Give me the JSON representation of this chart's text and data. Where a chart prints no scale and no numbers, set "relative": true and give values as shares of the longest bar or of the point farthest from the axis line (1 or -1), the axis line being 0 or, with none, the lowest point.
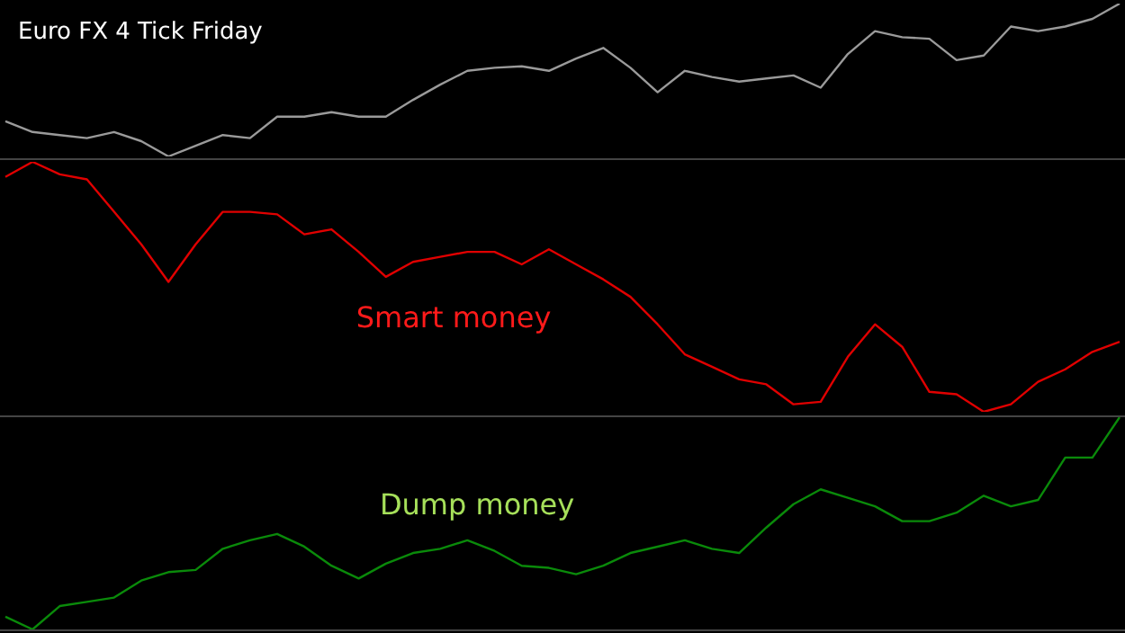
{
  "chart_data": [
    {
      "type": "line",
      "title": "Euro FX 4 Tick Friday",
      "relative": true,
      "categories": [
        null,
        null,
        null,
        null,
        null,
        null,
        null,
        null,
        null,
        null,
        null,
        null,
        null,
        null,
        null,
        null,
        null,
        null,
        null,
        null,
        null,
        null,
        null,
        null,
        null,
        null,
        null,
        null,
        null,
        null,
        null,
        null,
        null,
        null,
        null,
        null,
        null,
        null,
        null,
        null,
        null,
        null
      ],
      "series": [
        {
          "color": "#9a9a9a",
          "values": [
            0.23,
            0.16,
            0.14,
            0.12,
            0.16,
            0.1,
            0,
            0.07,
            0.14,
            0.12,
            0.26,
            0.26,
            0.29,
            0.26,
            0.26,
            0.37,
            0.47,
            0.56,
            0.58,
            0.59,
            0.56,
            0.64,
            0.71,
            0.58,
            0.42,
            0.56,
            0.52,
            0.49,
            0.51,
            0.53,
            0.45,
            0.67,
            0.82,
            0.78,
            0.77,
            0.63,
            0.66,
            0.85,
            0.82,
            0.85,
            0.9,
            1
          ]
        }
      ]
    },
    {
      "type": "line",
      "relative": true,
      "annotations": [
        "Smart money"
      ],
      "categories": [
        null,
        null,
        null,
        null,
        null,
        null,
        null,
        null,
        null,
        null,
        null,
        null,
        null,
        null,
        null,
        null,
        null,
        null,
        null,
        null,
        null,
        null,
        null,
        null,
        null,
        null,
        null,
        null,
        null,
        null,
        null,
        null,
        null,
        null,
        null,
        null,
        null,
        null,
        null,
        null,
        null,
        null
      ],
      "series": [
        {
          "color": "#e00000",
          "values": [
            0.94,
            1,
            0.95,
            0.93,
            0.8,
            0.67,
            0.52,
            0.67,
            0.8,
            0.8,
            0.79,
            0.71,
            0.73,
            0.64,
            0.54,
            0.6,
            0.62,
            0.64,
            0.64,
            0.59,
            0.65,
            0.59,
            0.53,
            0.46,
            0.35,
            0.23,
            0.18,
            0.13,
            0.11,
            0.03,
            0.04,
            0.22,
            0.35,
            0.26,
            0.08,
            0.07,
            0,
            0.03,
            0.12,
            0.17,
            0.24,
            0.28
          ]
        }
      ]
    },
    {
      "type": "line",
      "relative": true,
      "annotations": [
        "Dump money"
      ],
      "categories": [
        null,
        null,
        null,
        null,
        null,
        null,
        null,
        null,
        null,
        null,
        null,
        null,
        null,
        null,
        null,
        null,
        null,
        null,
        null,
        null,
        null,
        null,
        null,
        null,
        null,
        null,
        null,
        null,
        null,
        null,
        null,
        null,
        null,
        null,
        null,
        null,
        null,
        null,
        null,
        null,
        null,
        null
      ],
      "series": [
        {
          "color": "#0a8a0a",
          "values": [
            0.06,
            0,
            0.11,
            0.13,
            0.15,
            0.23,
            0.27,
            0.28,
            0.38,
            0.42,
            0.45,
            0.39,
            0.3,
            0.24,
            0.31,
            0.36,
            0.38,
            0.42,
            0.37,
            0.3,
            0.29,
            0.26,
            0.3,
            0.36,
            0.39,
            0.42,
            0.38,
            0.36,
            0.48,
            0.59,
            0.66,
            0.62,
            0.58,
            0.51,
            0.51,
            0.55,
            0.63,
            0.58,
            0.61,
            0.81,
            0.81,
            1
          ]
        }
      ]
    }
  ]
}
